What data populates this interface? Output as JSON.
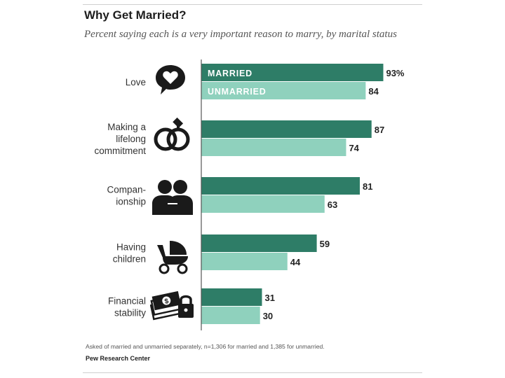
{
  "title": "Why Get Married?",
  "subtitle": "Percent saying each is a very important reason to marry, by marital status",
  "note": "Asked of married and unmarried separately, n=1,306 for married and 1,385 for unmarried.",
  "source": "Pew Research Center",
  "colors": {
    "married": "#2e7d67",
    "unmarried": "#8fd1bd",
    "axis": "#555555"
  },
  "icons": [
    "heart-speech-bubble-icon",
    "wedding-rings-icon",
    "couple-icon",
    "baby-stroller-icon",
    "money-lock-icon"
  ],
  "chart_data": {
    "type": "bar",
    "orientation": "horizontal",
    "categories": [
      [
        "Love"
      ],
      [
        "Making a",
        "lifelong",
        "commitment"
      ],
      [
        "Compan-",
        "ionship"
      ],
      [
        "Having",
        "children"
      ],
      [
        "Financial",
        "stability"
      ]
    ],
    "series": [
      {
        "name": "MARRIED",
        "values": [
          93,
          87,
          81,
          59,
          31
        ],
        "labels": [
          "93%",
          "87",
          "81",
          "59",
          "31"
        ]
      },
      {
        "name": "UNMARRIED",
        "values": [
          84,
          74,
          63,
          44,
          30
        ],
        "labels": [
          "84",
          "74",
          "63",
          "44",
          "30"
        ]
      }
    ],
    "legend_placement": "inside first bars",
    "xlim": [
      0,
      100
    ],
    "grid": false
  }
}
